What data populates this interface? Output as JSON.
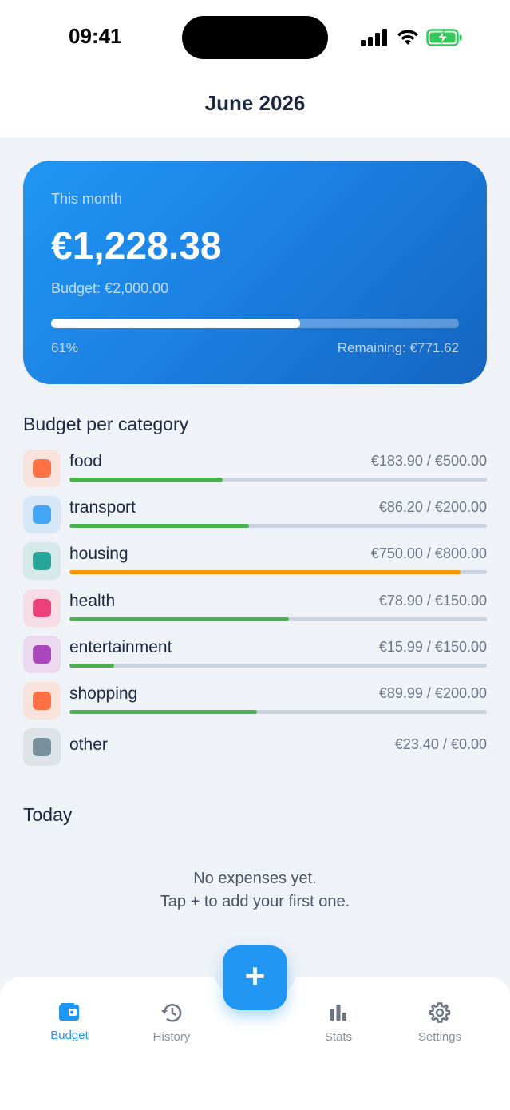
{
  "status_bar": {
    "time": "09:41",
    "icons": [
      "signal-icon",
      "wifi-icon",
      "battery-charging-icon"
    ]
  },
  "header": {
    "title": "June 2026"
  },
  "summary": {
    "label": "This month",
    "amount": "€1,228.38",
    "budget_text": "Budget: €2,000.00",
    "percent_text": "61%",
    "progress": 0.61,
    "remaining_text": "Remaining: €771.62"
  },
  "categories_section": {
    "title": "Budget per category",
    "items": [
      {
        "name": "food",
        "amount": "€183.90 / €500.00",
        "progress": 0.368,
        "color": "#ff7043",
        "bg": "#f8e3dc",
        "bar": "#4caf50"
      },
      {
        "name": "transport",
        "amount": "€86.20 / €200.00",
        "progress": 0.431,
        "color": "#42a5f5",
        "bg": "#d6e8f8",
        "bar": "#4caf50"
      },
      {
        "name": "housing",
        "amount": "€750.00 / €800.00",
        "progress": 0.9375,
        "color": "#26a69a",
        "bg": "#d4e9e8",
        "bar": "#ff9800"
      },
      {
        "name": "health",
        "amount": "€78.90 / €150.00",
        "progress": 0.526,
        "color": "#ec407a",
        "bg": "#f6dce5",
        "bar": "#4caf50"
      },
      {
        "name": "entertainment",
        "amount": "€15.99 / €150.00",
        "progress": 0.107,
        "color": "#ab47bc",
        "bg": "#ead9ef",
        "bar": "#4caf50"
      },
      {
        "name": "shopping",
        "amount": "€89.99 / €200.00",
        "progress": 0.45,
        "color": "#ff7043",
        "bg": "#f8e3dc",
        "bar": "#4caf50"
      },
      {
        "name": "other",
        "amount": "€23.40 / €0.00",
        "progress": null,
        "color": "#78909c",
        "bg": "#dde3e7",
        "bar": null
      }
    ]
  },
  "today_section": {
    "title": "Today",
    "empty_line1": "No expenses yet.",
    "empty_line2": "Tap + to add your first one."
  },
  "fab": {
    "label": "+"
  },
  "bottom_nav": {
    "items": [
      {
        "label": "Budget",
        "icon": "wallet-icon",
        "active": true
      },
      {
        "label": "History",
        "icon": "history-icon",
        "active": false
      },
      {
        "label": "Stats",
        "icon": "bar-chart-icon",
        "active": false
      },
      {
        "label": "Settings",
        "icon": "gear-icon",
        "active": false
      }
    ]
  },
  "colors": {
    "accent": "#2196f3",
    "text": "#1c2740",
    "muted": "#6d7586",
    "background": "#eff2f7"
  }
}
